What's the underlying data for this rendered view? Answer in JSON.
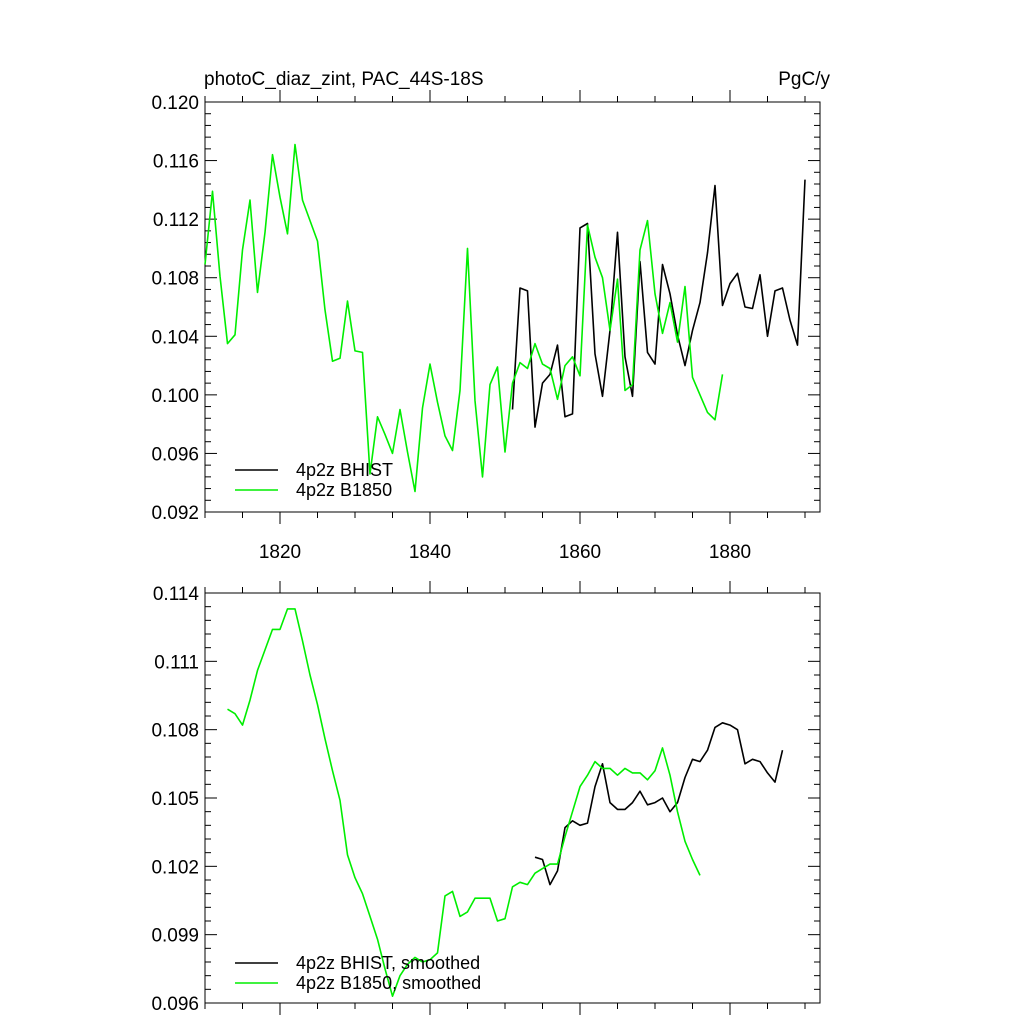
{
  "chart_data": [
    {
      "type": "line",
      "title_left": "photoC_diaz_zint, PAC_44S-18S",
      "title_right": "PgC/y",
      "xlabel": "",
      "ylabel": "",
      "xlim": [
        1810,
        1892
      ],
      "ylim": [
        0.092,
        0.12
      ],
      "x_ticks": [
        1820,
        1840,
        1860,
        1880
      ],
      "x_tick_labels": [
        "1820",
        "1840",
        "1860",
        "1880"
      ],
      "y_ticks": [
        0.092,
        0.096,
        0.1,
        0.104,
        0.108,
        0.112,
        0.116,
        0.12
      ],
      "y_tick_labels": [
        "0.092",
        "0.096",
        "0.100",
        "0.104",
        "0.108",
        "0.112",
        "0.116",
        "0.120"
      ],
      "grid": false,
      "legend_position": "bottom-left",
      "series": [
        {
          "name": "4p2z BHIST",
          "color": "#000000",
          "x": [
            1851,
            1852,
            1853,
            1854,
            1855,
            1856,
            1857,
            1858,
            1859,
            1860,
            1861,
            1862,
            1863,
            1864,
            1865,
            1866,
            1867,
            1868,
            1869,
            1870,
            1871,
            1872,
            1873,
            1874,
            1875,
            1876,
            1877,
            1878,
            1879,
            1880,
            1881,
            1882,
            1883,
            1884,
            1885,
            1886,
            1887,
            1888,
            1889,
            1890
          ],
          "y": [
            0.099,
            0.1073,
            0.1071,
            0.0978,
            0.1008,
            0.1014,
            0.1034,
            0.0985,
            0.0987,
            0.1114,
            0.1117,
            0.1028,
            0.0999,
            0.1044,
            0.1111,
            0.1026,
            0.0999,
            0.1091,
            0.1029,
            0.1021,
            0.1089,
            0.1069,
            0.1041,
            0.102,
            0.1044,
            0.1063,
            0.1097,
            0.1143,
            0.1061,
            0.1076,
            0.1083,
            0.106,
            0.1059,
            0.1082,
            0.104,
            0.1071,
            0.1073,
            0.1051,
            0.1034,
            0.1147
          ]
        },
        {
          "name": "4p2z B1850",
          "color": "#00ee00",
          "x": [
            1810,
            1811,
            1812,
            1813,
            1814,
            1815,
            1816,
            1817,
            1818,
            1819,
            1820,
            1821,
            1822,
            1823,
            1824,
            1825,
            1826,
            1827,
            1828,
            1829,
            1830,
            1831,
            1832,
            1833,
            1834,
            1835,
            1836,
            1837,
            1838,
            1839,
            1840,
            1841,
            1842,
            1843,
            1844,
            1845,
            1846,
            1847,
            1848,
            1849,
            1850,
            1851,
            1852,
            1853,
            1854,
            1855,
            1856,
            1857,
            1858,
            1859,
            1860,
            1861,
            1862,
            1863,
            1864,
            1865,
            1866,
            1867,
            1868,
            1869,
            1870,
            1871,
            1872,
            1873,
            1874,
            1875,
            1876,
            1877,
            1878,
            1879,
            1880
          ],
          "y": [
            0.1089,
            0.1139,
            0.1081,
            0.1035,
            0.1041,
            0.1099,
            0.1133,
            0.107,
            0.1111,
            0.1164,
            0.1135,
            0.111,
            0.1171,
            0.1133,
            0.1119,
            0.1105,
            0.1058,
            0.1023,
            0.1025,
            0.1064,
            0.103,
            0.1029,
            0.0946,
            0.0985,
            0.0973,
            0.096,
            0.099,
            0.0961,
            0.0934,
            0.0991,
            0.1021,
            0.0995,
            0.0972,
            0.0962,
            0.1003,
            0.11,
            0.0996,
            0.0944,
            0.1007,
            0.1019,
            0.0961,
            0.1008,
            0.1022,
            0.1018,
            0.1035,
            0.1021,
            0.1018,
            0.0997,
            0.102,
            0.1026,
            0.1013,
            0.1116,
            0.1094,
            0.108,
            0.1044,
            0.1079,
            0.1003,
            0.1007,
            0.1099,
            0.1119,
            0.1069,
            0.1042,
            0.1063,
            0.1036,
            0.1074,
            0.1012,
            0.1,
            0.0988,
            0.0983,
            0.1014,
            null
          ]
        }
      ]
    },
    {
      "type": "line",
      "title_left": "",
      "title_right": "",
      "xlabel": "",
      "ylabel": "",
      "xlim": [
        1810,
        1892
      ],
      "ylim": [
        0.096,
        0.114
      ],
      "x_ticks": [
        1820,
        1840,
        1860,
        1880
      ],
      "x_tick_labels": [],
      "y_ticks": [
        0.096,
        0.099,
        0.102,
        0.105,
        0.108,
        0.111,
        0.114
      ],
      "y_tick_labels": [
        "0.096",
        "0.099",
        "0.102",
        "0.105",
        "0.108",
        "0.111",
        "0.114"
      ],
      "grid": false,
      "legend_position": "bottom-left",
      "series": [
        {
          "name": "4p2z BHIST, smoothed",
          "color": "#000000",
          "x": [
            1854,
            1855,
            1856,
            1857,
            1858,
            1859,
            1860,
            1861,
            1862,
            1863,
            1864,
            1865,
            1866,
            1867,
            1868,
            1869,
            1870,
            1871,
            1872,
            1873,
            1874,
            1875,
            1876,
            1877,
            1878,
            1879,
            1880,
            1881,
            1882,
            1883,
            1884,
            1885,
            1886,
            1887
          ],
          "y": [
            0.1024,
            0.1023,
            0.1012,
            0.1018,
            0.1037,
            0.104,
            0.1038,
            0.1039,
            0.1055,
            0.1065,
            0.1048,
            0.1045,
            0.1045,
            0.1048,
            0.1053,
            0.1047,
            0.1048,
            0.105,
            0.1044,
            0.1048,
            0.1059,
            0.1067,
            0.1066,
            0.1071,
            0.1081,
            0.1083,
            0.1082,
            0.108,
            0.1065,
            0.1067,
            0.1066,
            0.1061,
            0.1057,
            0.1071
          ]
        },
        {
          "name": "4p2z B1850, smoothed",
          "color": "#00ee00",
          "x": [
            1813,
            1814,
            1815,
            1816,
            1817,
            1818,
            1819,
            1820,
            1821,
            1822,
            1823,
            1824,
            1825,
            1826,
            1827,
            1828,
            1829,
            1830,
            1831,
            1832,
            1833,
            1834,
            1835,
            1836,
            1837,
            1838,
            1839,
            1840,
            1841,
            1842,
            1843,
            1844,
            1845,
            1846,
            1847,
            1848,
            1849,
            1850,
            1851,
            1852,
            1853,
            1854,
            1855,
            1856,
            1857,
            1858,
            1859,
            1860,
            1861,
            1862,
            1863,
            1864,
            1865,
            1866,
            1867,
            1868,
            1869,
            1870,
            1871,
            1872,
            1873,
            1874,
            1875,
            1876,
            1877
          ],
          "y": [
            0.1089,
            0.1087,
            0.1082,
            0.1093,
            0.1106,
            0.1115,
            0.1124,
            0.1124,
            0.1133,
            0.1133,
            0.1119,
            0.1104,
            0.1091,
            0.1076,
            0.1062,
            0.1049,
            0.1025,
            0.1015,
            0.1008,
            0.0998,
            0.0988,
            0.0975,
            0.0963,
            0.0972,
            0.0977,
            0.098,
            0.0978,
            0.0979,
            0.0982,
            0.1007,
            0.1009,
            0.0998,
            0.1,
            0.1006,
            0.1006,
            0.1006,
            0.0996,
            0.0997,
            0.1011,
            0.1013,
            0.1012,
            0.1017,
            0.1019,
            0.1021,
            0.1021,
            0.1033,
            0.1044,
            0.1055,
            0.106,
            0.1066,
            0.1063,
            0.1063,
            0.106,
            0.1063,
            0.1061,
            0.1061,
            0.1058,
            0.1062,
            0.1072,
            0.106,
            0.1044,
            0.1031,
            0.1023,
            0.1016,
            null
          ]
        }
      ]
    }
  ]
}
